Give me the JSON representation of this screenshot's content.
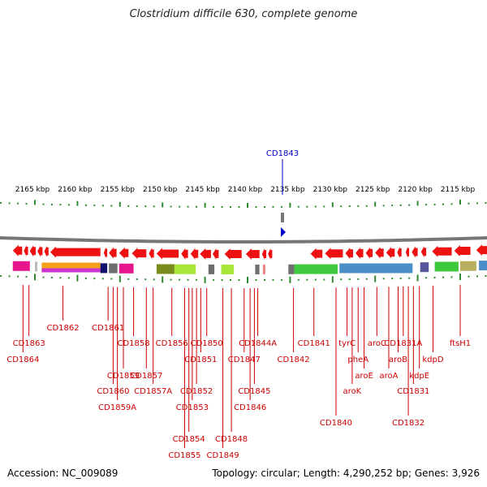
{
  "title": "Clostridium difficile 630, complete genome",
  "footer": {
    "accession": "Accession: NC_009089",
    "topology": "Topology: circular; Length: 4,290,252 bp; Genes: 3,926"
  },
  "marker": {
    "label": "CD1843",
    "color": "#0000cc"
  },
  "scale": {
    "ticks": [
      {
        "label": "2165 kbp",
        "kbp": 2165
      },
      {
        "label": "2160 kbp",
        "kbp": 2160
      },
      {
        "label": "2155 kbp",
        "kbp": 2155
      },
      {
        "label": "2150 kbp",
        "kbp": 2150
      },
      {
        "label": "2145 kbp",
        "kbp": 2145
      },
      {
        "label": "2140 kbp",
        "kbp": 2140
      },
      {
        "label": "2135 kbp",
        "kbp": 2135
      },
      {
        "label": "2130 kbp",
        "kbp": 2130
      },
      {
        "label": "2125 kbp",
        "kbp": 2125
      },
      {
        "label": "2120 kbp",
        "kbp": 2120
      },
      {
        "label": "2115 kbp",
        "kbp": 2115
      }
    ]
  },
  "genes": [
    {
      "kbp": 2167.6,
      "kbp_end": 2166.5,
      "dir": -1
    },
    {
      "kbp": 2166.3,
      "kbp_end": 2165.8,
      "dir": -1
    },
    {
      "kbp": 2165.6,
      "kbp_end": 2164.9,
      "dir": -1
    },
    {
      "kbp": 2164.7,
      "kbp_end": 2164.1,
      "dir": -1
    },
    {
      "kbp": 2163.9,
      "kbp_end": 2163.4,
      "dir": -1
    },
    {
      "kbp": 2163.2,
      "kbp_end": 2157.3,
      "dir": -1
    },
    {
      "kbp": 2156.9,
      "kbp_end": 2156.5,
      "dir": -1
    },
    {
      "kbp": 2156.3,
      "kbp_end": 2155.4,
      "dir": -1
    },
    {
      "kbp": 2155.1,
      "kbp_end": 2154.0,
      "dir": -1
    },
    {
      "kbp": 2153.6,
      "kbp_end": 2151.9,
      "dir": -1
    },
    {
      "kbp": 2151.6,
      "kbp_end": 2151.0,
      "dir": -1
    },
    {
      "kbp": 2150.7,
      "kbp_end": 2148.1,
      "dir": -1
    },
    {
      "kbp": 2147.8,
      "kbp_end": 2147.0,
      "dir": -1
    },
    {
      "kbp": 2146.7,
      "kbp_end": 2145.8,
      "dir": -1
    },
    {
      "kbp": 2145.6,
      "kbp_end": 2144.3,
      "dir": -1
    },
    {
      "kbp": 2144.1,
      "kbp_end": 2143.4,
      "dir": -1
    },
    {
      "kbp": 2142.7,
      "kbp_end": 2140.7,
      "dir": -1
    },
    {
      "kbp": 2140.2,
      "kbp_end": 2138.6,
      "dir": -1
    },
    {
      "kbp": 2138.3,
      "kbp_end": 2137.8,
      "dir": -1
    },
    {
      "kbp": 2137.6,
      "kbp_end": 2137.1,
      "dir": -1
    },
    {
      "kbp": 2132.6,
      "kbp_end": 2131.2,
      "dir": -1
    },
    {
      "kbp": 2130.9,
      "kbp_end": 2128.8,
      "dir": -1
    },
    {
      "kbp": 2128.5,
      "kbp_end": 2127.6,
      "dir": -1
    },
    {
      "kbp": 2127.3,
      "kbp_end": 2126.4,
      "dir": -1
    },
    {
      "kbp": 2126.1,
      "kbp_end": 2125.3,
      "dir": -1
    },
    {
      "kbp": 2125.0,
      "kbp_end": 2124.0,
      "dir": -1
    },
    {
      "kbp": 2123.7,
      "kbp_end": 2122.7,
      "dir": -1
    },
    {
      "kbp": 2122.4,
      "kbp_end": 2121.9,
      "dir": -1
    },
    {
      "kbp": 2121.4,
      "kbp_end": 2121.0,
      "dir": -1
    },
    {
      "kbp": 2120.7,
      "kbp_end": 2120.0,
      "dir": -1
    },
    {
      "kbp": 2119.6,
      "kbp_end": 2119.0,
      "dir": -1
    },
    {
      "kbp": 2118.3,
      "kbp_end": 2116.0,
      "dir": -1
    },
    {
      "kbp": 2115.7,
      "kbp_end": 2113.8,
      "dir": -1
    },
    {
      "kbp": 2113.1,
      "kbp_end": 2111.2,
      "dir": -1
    }
  ],
  "cogs": [
    {
      "kbp": 2167.6,
      "kbp_end": 2165.6,
      "color": "#e8168c"
    },
    {
      "kbp": 2165.0,
      "kbp_end": 2164.7,
      "color": "#bbbbbb"
    },
    {
      "kbp": 2164.2,
      "kbp_end": 2157.3,
      "color": "#f4a018"
    },
    {
      "kbp": 2164.2,
      "kbp_end": 2157.3,
      "color": "#cc33cc",
      "half": "lower"
    },
    {
      "kbp": 2157.3,
      "kbp_end": 2156.5,
      "color": "#10106a"
    },
    {
      "kbp": 2156.3,
      "kbp_end": 2155.3,
      "color": "#6e6e6e"
    },
    {
      "kbp": 2155.1,
      "kbp_end": 2153.4,
      "color": "#e8168c"
    },
    {
      "kbp": 2150.7,
      "kbp_end": 2148.6,
      "color": "#7a8a1c"
    },
    {
      "kbp": 2148.6,
      "kbp_end": 2146.1,
      "color": "#a8e63a"
    },
    {
      "kbp": 2144.6,
      "kbp_end": 2143.9,
      "color": "#6e6e6e"
    },
    {
      "kbp": 2143.1,
      "kbp_end": 2141.6,
      "color": "#a8e63a"
    },
    {
      "kbp": 2139.1,
      "kbp_end": 2138.6,
      "color": "#6e6e6e"
    },
    {
      "kbp": 2138.2,
      "kbp_end": 2137.9,
      "color": "#ee8888"
    },
    {
      "kbp": 2135.2,
      "kbp_end": 2134.5,
      "color": "#6e6e6e"
    },
    {
      "kbp": 2134.5,
      "kbp_end": 2129.4,
      "color": "#3ec83e"
    },
    {
      "kbp": 2129.2,
      "kbp_end": 2120.6,
      "color": "#4a8fc8"
    },
    {
      "kbp": 2119.7,
      "kbp_end": 2118.7,
      "color": "#555599"
    },
    {
      "kbp": 2118.0,
      "kbp_end": 2115.2,
      "color": "#3ec83e"
    },
    {
      "kbp": 2115.0,
      "kbp_end": 2113.1,
      "color": "#b8b060"
    },
    {
      "kbp": 2112.8,
      "kbp_end": 2111.2,
      "color": "#4a8fc8"
    }
  ],
  "gene_labels": [
    {
      "label": "CD1864",
      "kbp": 2166.4,
      "row": 2
    },
    {
      "label": "CD1863",
      "kbp": 2165.7,
      "row": 1
    },
    {
      "label": "CD1862",
      "kbp": 2161.7,
      "row": 0
    },
    {
      "label": "CD1861",
      "kbp": 2156.4,
      "row": 0
    },
    {
      "label": "CD1860",
      "kbp": 2155.8,
      "row": 4
    },
    {
      "label": "CD1859A",
      "kbp": 2155.3,
      "row": 5
    },
    {
      "label": "CD1859",
      "kbp": 2154.6,
      "row": 3
    },
    {
      "label": "CD1858",
      "kbp": 2153.4,
      "row": 1
    },
    {
      "label": "CD1857",
      "kbp": 2151.9,
      "row": 3
    },
    {
      "label": "CD1857A",
      "kbp": 2151.1,
      "row": 4
    },
    {
      "label": "CD1856",
      "kbp": 2148.9,
      "row": 1
    },
    {
      "label": "CD1855",
      "kbp": 2147.4,
      "row": 8
    },
    {
      "label": "CD1854",
      "kbp": 2146.9,
      "row": 7
    },
    {
      "label": "CD1853",
      "kbp": 2146.5,
      "row": 5
    },
    {
      "label": "CD1852",
      "kbp": 2146.0,
      "row": 4
    },
    {
      "label": "CD1851",
      "kbp": 2145.5,
      "row": 2
    },
    {
      "label": "CD1850",
      "kbp": 2144.8,
      "row": 1
    },
    {
      "label": "CD1849",
      "kbp": 2142.9,
      "row": 8
    },
    {
      "label": "CD1848",
      "kbp": 2141.9,
      "row": 7
    },
    {
      "label": "CD1847",
      "kbp": 2140.4,
      "row": 2
    },
    {
      "label": "CD1846",
      "kbp": 2139.7,
      "row": 5
    },
    {
      "label": "CD1845",
      "kbp": 2139.2,
      "row": 4
    },
    {
      "label": "CD1844A",
      "kbp": 2138.8,
      "row": 1
    },
    {
      "label": "CD1842",
      "kbp": 2134.6,
      "row": 2
    },
    {
      "label": "CD1841",
      "kbp": 2132.2,
      "row": 1
    },
    {
      "label": "CD1840",
      "kbp": 2129.6,
      "row": 6
    },
    {
      "label": "tyrC",
      "kbp": 2128.3,
      "row": 1
    },
    {
      "label": "aroK",
      "kbp": 2127.7,
      "row": 4
    },
    {
      "label": "pheA",
      "kbp": 2127.0,
      "row": 2
    },
    {
      "label": "aroE",
      "kbp": 2126.3,
      "row": 3
    },
    {
      "label": "aroC",
      "kbp": 2124.8,
      "row": 1
    },
    {
      "label": "aroA",
      "kbp": 2123.4,
      "row": 3
    },
    {
      "label": "aroB",
      "kbp": 2122.3,
      "row": 2
    },
    {
      "label": "CD1831A",
      "kbp": 2121.7,
      "row": 1
    },
    {
      "label": "CD1832",
      "kbp": 2121.1,
      "row": 6
    },
    {
      "label": "CD1831",
      "kbp": 2120.5,
      "row": 4
    },
    {
      "label": "kdpE",
      "kbp": 2119.8,
      "row": 3
    },
    {
      "label": "kdpD",
      "kbp": 2118.2,
      "row": 2
    },
    {
      "label": "ftsH1",
      "kbp": 2115.0,
      "row": 1
    }
  ]
}
